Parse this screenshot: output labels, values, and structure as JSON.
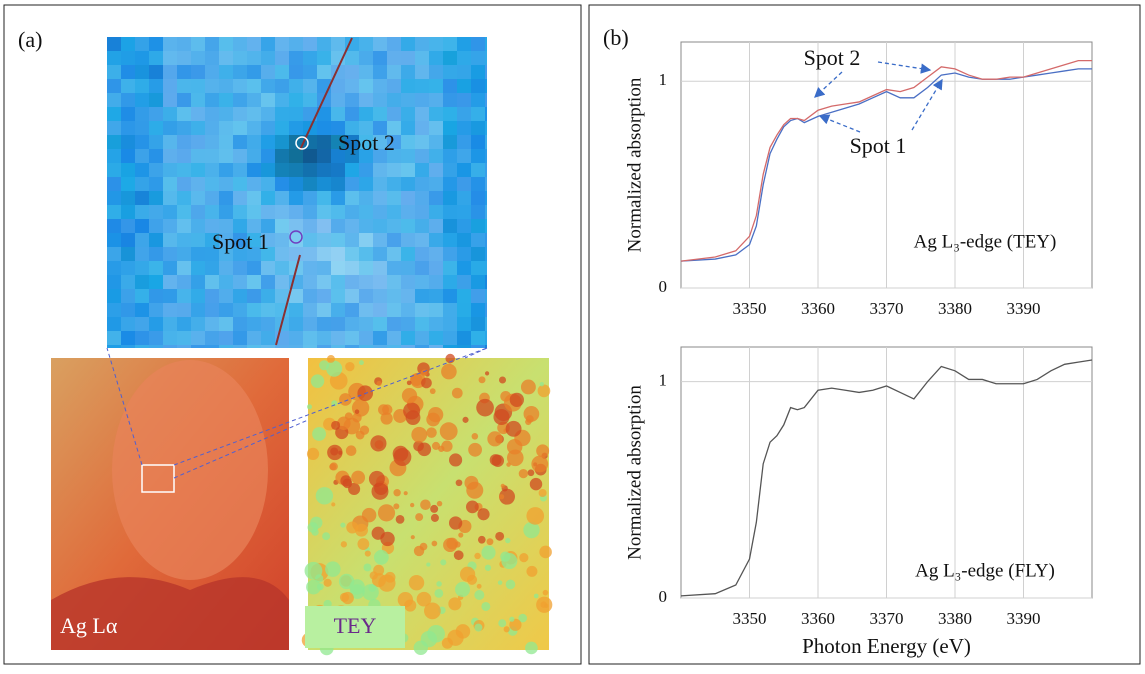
{
  "panel_a": {
    "label": "(a)",
    "spot_labels": [
      "Spot 2",
      "Spot 1"
    ],
    "map_label": "Ag Lα",
    "tey_label": "TEY"
  },
  "panel_b": {
    "label": "(b)"
  },
  "chart_data": [
    {
      "type": "line",
      "ylabel": "Normalized absorption",
      "annotation": "Ag L₃-edge  (TEY)",
      "x": [
        3340,
        3345,
        3348,
        3350,
        3351,
        3352,
        3353,
        3354,
        3355,
        3356,
        3357,
        3358,
        3360,
        3362,
        3364,
        3366,
        3368,
        3370,
        3372,
        3374,
        3376,
        3378,
        3380,
        3382,
        3384,
        3386,
        3388,
        3390,
        3392,
        3394,
        3396,
        3398,
        3400
      ],
      "series": [
        {
          "name": "Spot 1",
          "color": "#4a6fc4",
          "values": [
            0.13,
            0.14,
            0.16,
            0.21,
            0.3,
            0.5,
            0.65,
            0.72,
            0.78,
            0.81,
            0.82,
            0.8,
            0.83,
            0.85,
            0.87,
            0.89,
            0.92,
            0.95,
            0.92,
            0.92,
            0.97,
            1.03,
            1.04,
            1.02,
            1.01,
            1.01,
            1.01,
            1.02,
            1.03,
            1.04,
            1.05,
            1.06,
            1.06
          ]
        },
        {
          "name": "Spot 2",
          "color": "#d46a6a",
          "values": [
            0.13,
            0.15,
            0.18,
            0.25,
            0.35,
            0.55,
            0.68,
            0.74,
            0.79,
            0.82,
            0.82,
            0.81,
            0.86,
            0.88,
            0.89,
            0.9,
            0.93,
            0.96,
            0.95,
            0.97,
            1.02,
            1.07,
            1.06,
            1.03,
            1.01,
            1.01,
            1.02,
            1.02,
            1.04,
            1.06,
            1.08,
            1.1,
            1.1
          ]
        }
      ],
      "xlim": [
        3340,
        3400
      ],
      "ylim": [
        0,
        1.19
      ],
      "xticks": [
        3350,
        3360,
        3370,
        3380,
        3390
      ],
      "yticks": [
        0,
        1
      ],
      "grid": true
    },
    {
      "type": "line",
      "ylabel": "Normalized absorption",
      "xlabel": "Photon Energy  (eV)",
      "annotation": "Ag L₃-edge  (FLY)",
      "x": [
        3340,
        3345,
        3348,
        3350,
        3351,
        3352,
        3353,
        3354,
        3355,
        3356,
        3357,
        3358,
        3360,
        3362,
        3364,
        3366,
        3368,
        3370,
        3372,
        3374,
        3376,
        3378,
        3380,
        3382,
        3384,
        3386,
        3388,
        3390,
        3392,
        3394,
        3396,
        3398,
        3400
      ],
      "series": [
        {
          "color": "#555555",
          "values": [
            0.01,
            0.02,
            0.06,
            0.18,
            0.35,
            0.62,
            0.72,
            0.75,
            0.8,
            0.88,
            0.87,
            0.88,
            0.96,
            0.97,
            0.96,
            0.95,
            0.96,
            0.98,
            0.95,
            0.92,
            1.0,
            1.07,
            1.05,
            1.01,
            1.01,
            0.99,
            0.99,
            0.99,
            1.01,
            1.05,
            1.08,
            1.09,
            1.1
          ]
        }
      ],
      "xlim": [
        3340,
        3400
      ],
      "ylim": [
        0,
        1.16
      ],
      "xticks": [
        3350,
        3360,
        3370,
        3380,
        3390
      ],
      "yticks": [
        0,
        1
      ],
      "grid": true
    }
  ]
}
